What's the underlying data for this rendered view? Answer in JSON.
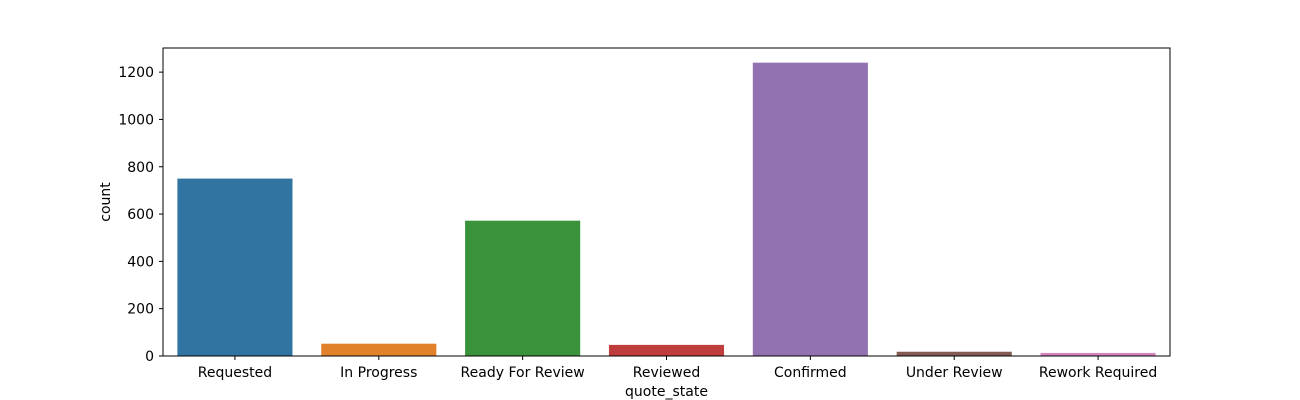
{
  "chart_data": {
    "type": "bar",
    "xlabel": "quote_state",
    "ylabel": "count",
    "categories": [
      "Requested",
      "In Progress",
      "Ready For Review",
      "Reviewed",
      "Confirmed",
      "Under Review",
      "Rework Required"
    ],
    "values": [
      750,
      52,
      572,
      47,
      1240,
      18,
      13
    ],
    "colors": [
      "#3274a1",
      "#e1812c",
      "#3a923a",
      "#c03d3e",
      "#9372b2",
      "#845b53",
      "#d684bd"
    ],
    "ylim": [
      0,
      1302
    ],
    "yticks": [
      0,
      200,
      400,
      600,
      800,
      1000,
      1200
    ],
    "grid": false,
    "legend": "none"
  }
}
